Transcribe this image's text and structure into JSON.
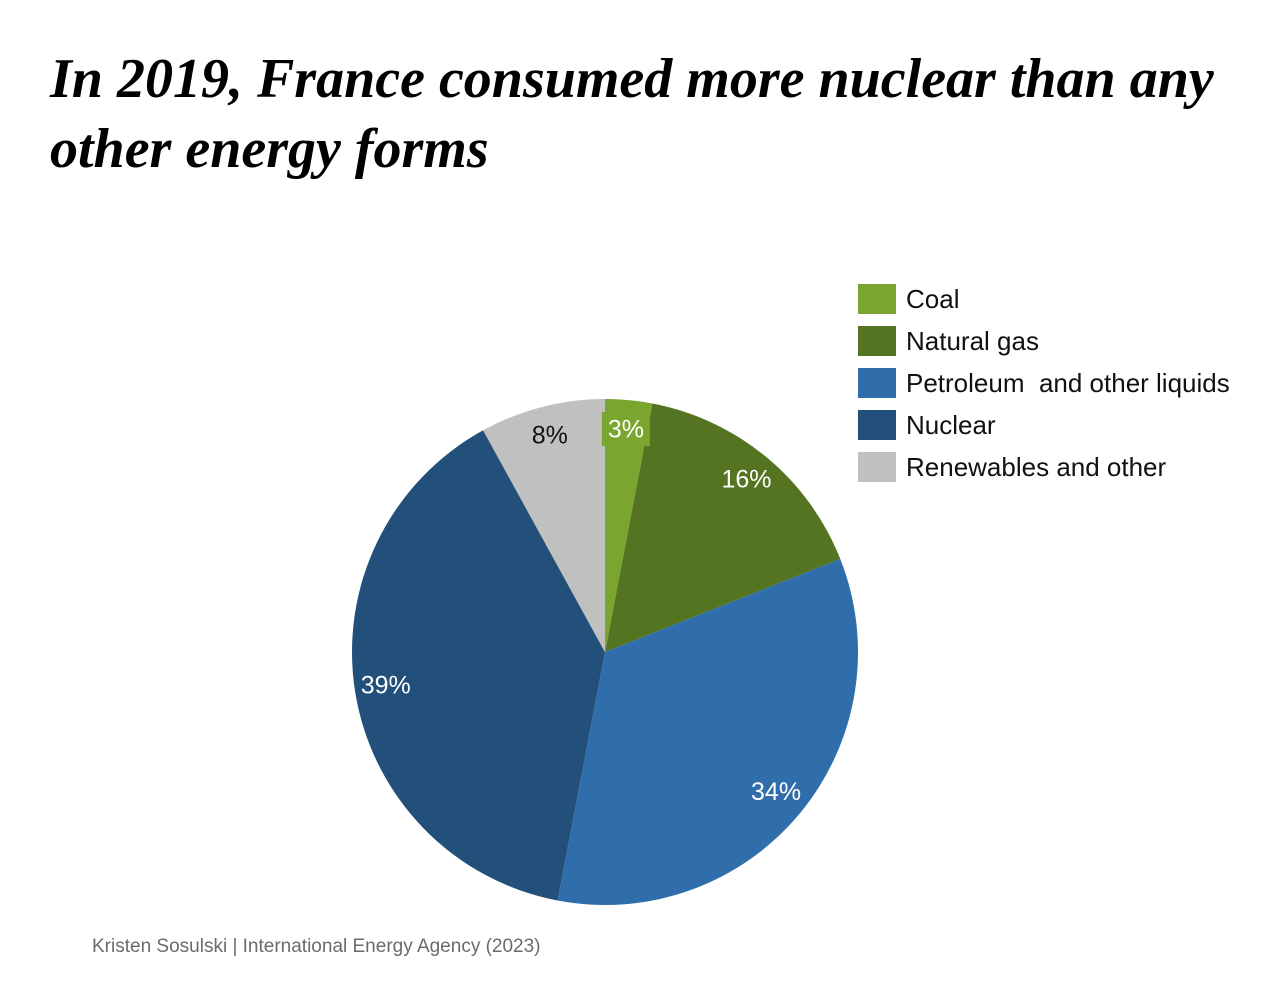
{
  "chart_data": {
    "type": "pie",
    "title": "In 2019, France consumed more nuclear than any other energy forms",
    "categories": [
      "Coal",
      "Natural gas",
      "Petroleum  and other liquids",
      "Nuclear",
      "Renewables and other"
    ],
    "values": [
      3,
      16,
      34,
      39,
      8
    ],
    "data_labels": [
      "3%",
      "16%",
      "34%",
      "39%",
      "8%"
    ],
    "colors": [
      "#7aa62f",
      "#557421",
      "#2f6eaa",
      "#22507a",
      "#c0c0c0"
    ],
    "label_colors": [
      "#ffffff",
      "#ffffff",
      "#ffffff",
      "#ffffff",
      "#111111"
    ],
    "legend_placement": "top-right",
    "start_angle": "12 o'clock",
    "direction": "clockwise"
  },
  "source": "Kristen Sosulski | International Energy Agency (2023)"
}
